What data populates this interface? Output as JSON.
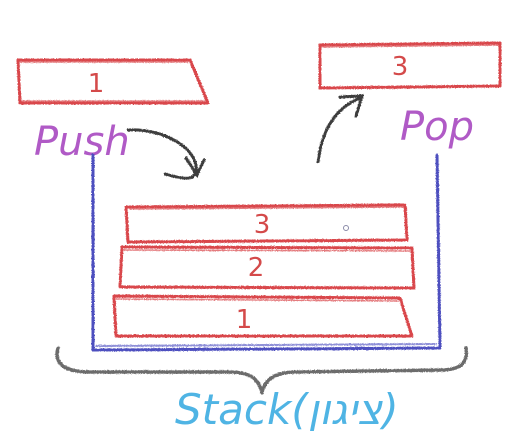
{
  "push_block": {
    "label": "1"
  },
  "pop_block": {
    "label": "3"
  },
  "push_label": "Push",
  "pop_label": "Pop",
  "stack_items": [
    {
      "label": "3"
    },
    {
      "label": "2"
    },
    {
      "label": "1"
    }
  ],
  "caption": "Stack(ציגון)",
  "colors": {
    "block_red": "#d9464b",
    "label_purple": "#b05ac6",
    "container_blue": "#4d4fbf",
    "brace_gray": "#6c6c6c",
    "caption_blue": "#4fb4e4",
    "arrow_dark": "#3c3c3c"
  }
}
